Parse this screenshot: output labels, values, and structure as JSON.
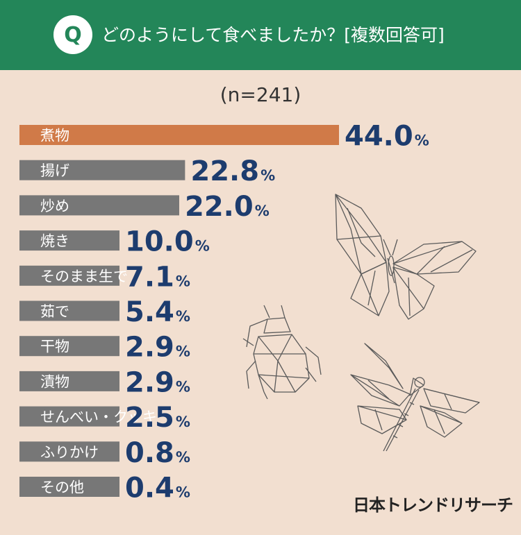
{
  "header": {
    "q_badge": "Q",
    "title": "どのようにして食べましたか？[複数回答可]"
  },
  "sample_size": "(n=241)",
  "brand": "日本トレンドリサーチ",
  "colors": {
    "header_bg": "#238659",
    "background": "#f2dfd0",
    "highlight_bar": "#d07a48",
    "bar": "#777777",
    "value_text": "#1d3c6e"
  },
  "decorations": [
    "butterfly-icon",
    "beetle-icon",
    "dragonfly-icon"
  ],
  "chart_data": {
    "type": "bar",
    "orientation": "horizontal",
    "unit": "%",
    "categories": [
      "煮物",
      "揚げ",
      "炒め",
      "焼き",
      "そのまま生で",
      "茹で",
      "干物",
      "漬物",
      "せんべい・クッキー",
      "ふりかけ",
      "その他"
    ],
    "values": [
      44.0,
      22.8,
      22.0,
      10.0,
      7.1,
      5.4,
      2.9,
      2.9,
      2.5,
      0.8,
      0.4
    ],
    "value_labels": [
      "44.0",
      "22.8",
      "22.0",
      "10.0",
      "7.1",
      "5.4",
      "2.9",
      "2.9",
      "2.5",
      "0.8",
      "0.4"
    ],
    "highlight_index": 0,
    "xlim": [
      0,
      50
    ],
    "grid": false,
    "legend": "none"
  }
}
